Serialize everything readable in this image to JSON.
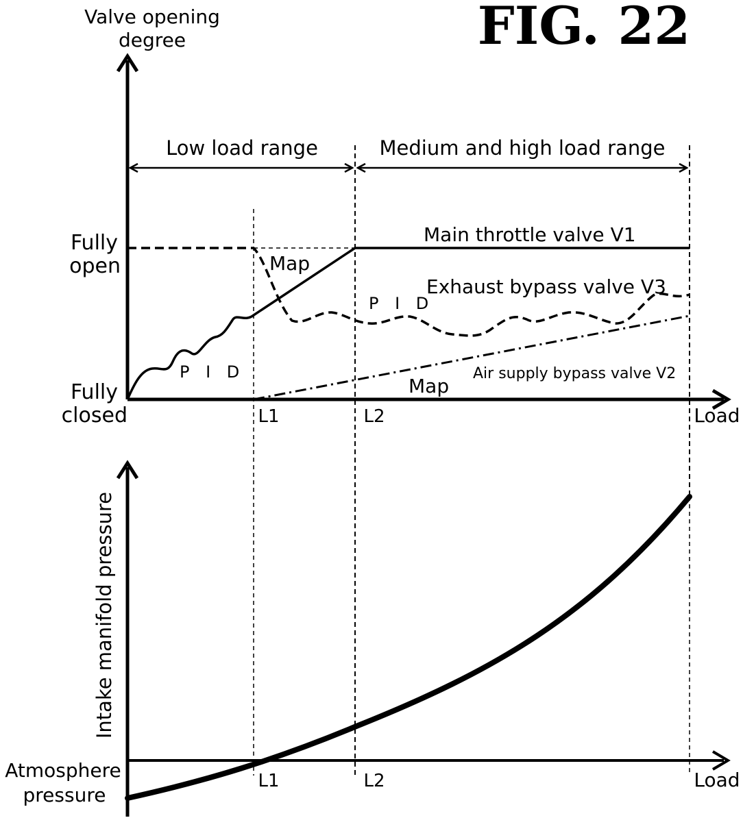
{
  "figure_label": "FIG. 22",
  "top_plot": {
    "y_axis_label_line1": "Valve opening",
    "y_axis_label_line2": "degree",
    "x_axis_label": "Load",
    "fully_open_line1": "Fully",
    "fully_open_line2": "open",
    "fully_closed_line1": "Fully",
    "fully_closed_line2": "closed",
    "tick_l1": "L1",
    "tick_l2": "L2",
    "range_low": "Low load range",
    "range_medium_high": "Medium and high load range",
    "label_main_throttle": "Main throttle valve V1",
    "label_exhaust_bypass": "Exhaust bypass valve V3",
    "label_air_supply_bypass": "Air supply bypass valve V2",
    "label_map_upper": "Map",
    "label_map_lower": "Map",
    "label_pid_left": "P I D",
    "label_pid_right": "P I D"
  },
  "bottom_plot": {
    "y_axis_label": "Intake manifold pressure",
    "x_axis_label": "Load",
    "atmosphere_line1": "Atmosphere",
    "atmosphere_line2": "pressure",
    "tick_l1": "L1",
    "tick_l2": "L2"
  },
  "colors": {
    "ink": "#000000",
    "background": "#ffffff"
  }
}
